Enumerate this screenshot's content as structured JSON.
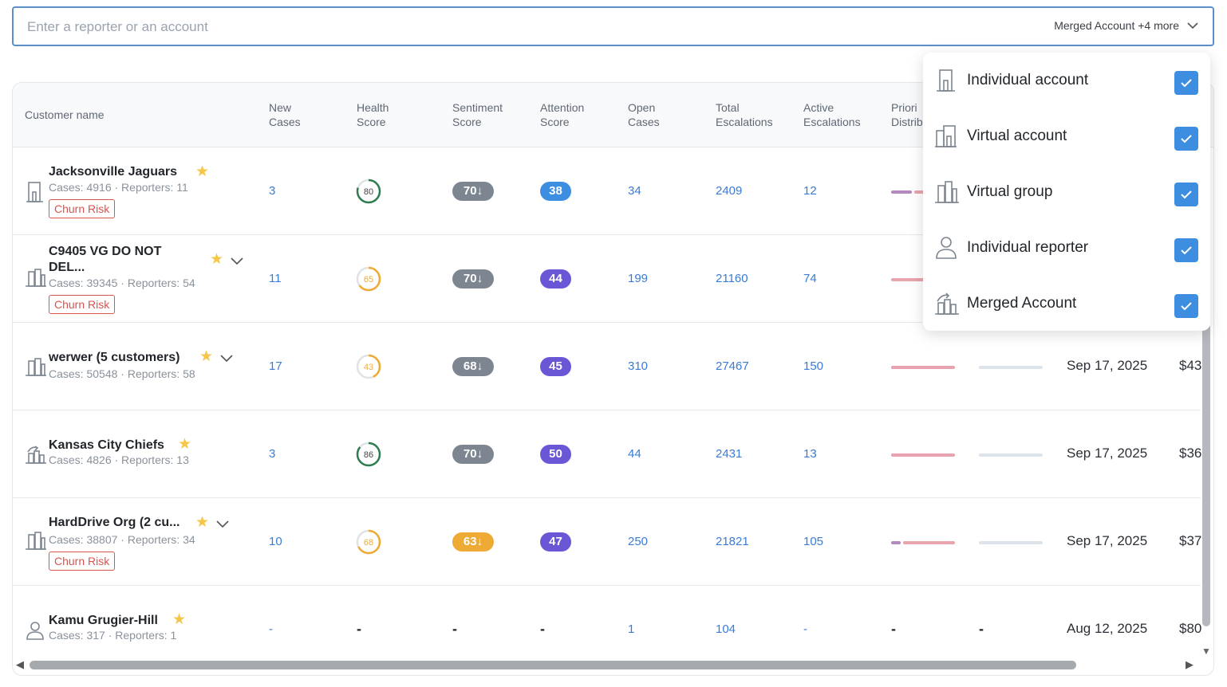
{
  "search": {
    "placeholder": "Enter a reporter or an account",
    "filter_summary": "Merged Account +4 more"
  },
  "columns": [
    {
      "key": "customer_name",
      "label": "Customer name"
    },
    {
      "key": "new_cases",
      "label1": "New",
      "label2": "Cases"
    },
    {
      "key": "health_score",
      "label1": "Health",
      "label2": "Score"
    },
    {
      "key": "sentiment_score",
      "label1": "Sentiment",
      "label2": "Score"
    },
    {
      "key": "attention_score",
      "label1": "Attention",
      "label2": "Score"
    },
    {
      "key": "open_cases",
      "label1": "Open",
      "label2": "Cases"
    },
    {
      "key": "total_escalations",
      "label1": "Total",
      "label2": "Escalations"
    },
    {
      "key": "active_escalations",
      "label1": "Active",
      "label2": "Escalations"
    },
    {
      "key": "priority_distribution",
      "label1": "Priori",
      "label2": "Distrib"
    }
  ],
  "rows": [
    {
      "name": "Jacksonville Jaguars",
      "meta": "Cases: 4916 · Reporters: 11",
      "churn": "Churn Risk",
      "icon": "building-icon",
      "new_cases": "3",
      "health": 80,
      "sentiment": "70↓",
      "attention": "38",
      "open_cases": "34",
      "total_esc": "2409",
      "active_esc": "12",
      "date": "",
      "amount": ""
    },
    {
      "name": "C9405 VG DO NOT DEL...",
      "meta": "Cases: 39345 · Reporters: 54",
      "churn": "Churn Risk",
      "icon": "virtual-group-icon",
      "new_cases": "11",
      "health": 65,
      "sentiment": "70↓",
      "attention": "44",
      "open_cases": "199",
      "total_esc": "21160",
      "active_esc": "74",
      "date": "",
      "amount": ""
    },
    {
      "name": "werwer (5 customers)",
      "meta": "Cases: 50548 · Reporters: 58",
      "churn": "",
      "icon": "virtual-group-icon",
      "new_cases": "17",
      "health": 43,
      "sentiment": "68↓",
      "attention": "45",
      "open_cases": "310",
      "total_esc": "27467",
      "active_esc": "150",
      "date": "Sep 17, 2025",
      "amount": "$43"
    },
    {
      "name": "Kansas City Chiefs",
      "meta": "Cases: 4826 · Reporters: 13",
      "churn": "",
      "icon": "merged-account-icon",
      "new_cases": "3",
      "health": 86,
      "sentiment": "70↓",
      "attention": "50",
      "open_cases": "44",
      "total_esc": "2431",
      "active_esc": "13",
      "date": "Sep 17, 2025",
      "amount": "$36"
    },
    {
      "name": "HardDrive Org (2 cu...",
      "meta": "Cases: 38807 · Reporters: 34",
      "churn": "Churn Risk",
      "icon": "virtual-group-icon",
      "new_cases": "10",
      "health": 68,
      "sentiment": "63↓",
      "attention": "47",
      "open_cases": "250",
      "total_esc": "21821",
      "active_esc": "105",
      "date": "Sep 17, 2025",
      "amount": "$37"
    },
    {
      "name": "Kamu Grugier-Hill",
      "meta": "Cases: 317 · Reporters: 1",
      "churn": "",
      "icon": "person-icon",
      "new_cases": "-",
      "health": "-",
      "sentiment": "-",
      "attention": "-",
      "open_cases": "1",
      "total_esc": "104",
      "active_esc": "-",
      "date": "Aug 12, 2025",
      "amount": "$80"
    }
  ],
  "dropdown": {
    "items": [
      {
        "label": "Individual account",
        "checked": true
      },
      {
        "label": "Virtual account",
        "checked": true
      },
      {
        "label": "Virtual group",
        "checked": true
      },
      {
        "label": "Individual reporter",
        "checked": true
      },
      {
        "label": "Merged Account",
        "checked": true
      }
    ]
  },
  "colors": {
    "accent": "#3d8ee0",
    "health_green": "#2e7d4f",
    "health_orange": "#eeaa35",
    "priority_red": "#e9a3ae",
    "priority_purple": "#b488c1",
    "priority_light": "#dde3ea"
  }
}
